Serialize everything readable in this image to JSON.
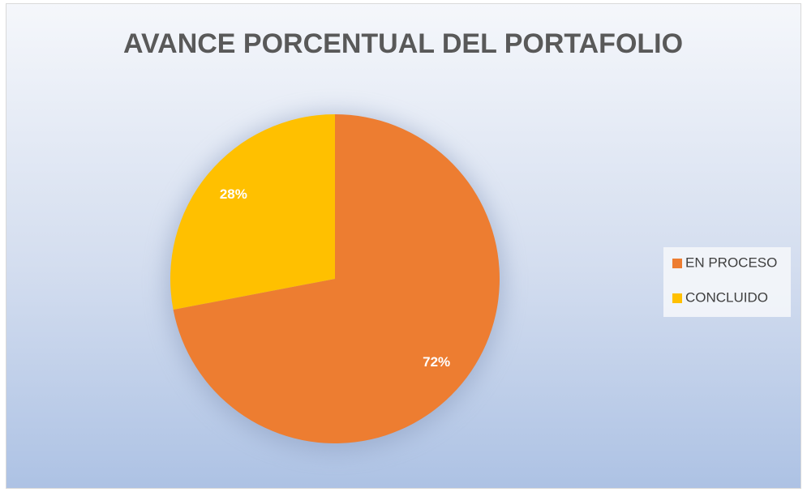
{
  "chart_data": {
    "type": "pie",
    "title": "AVANCE PORCENTUAL DEL PORTAFOLIO",
    "categories": [
      "EN PROCESO",
      "CONCLUIDO"
    ],
    "values": [
      72,
      28
    ],
    "value_labels": [
      "72%",
      "28%"
    ],
    "colors": [
      "#ed7d31",
      "#ffc000"
    ],
    "legend": "right"
  }
}
